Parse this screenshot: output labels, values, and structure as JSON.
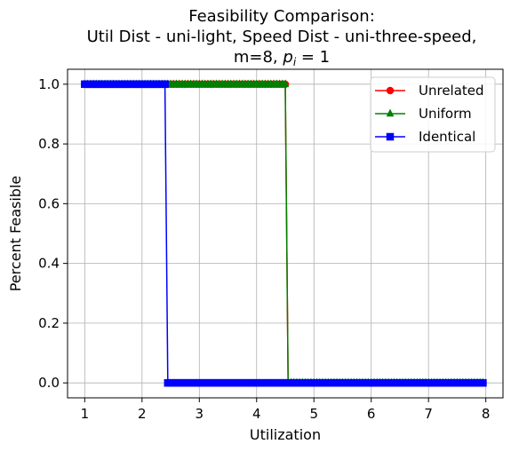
{
  "chart_data": {
    "type": "line",
    "title_lines": [
      "Feasibility Comparison:",
      "Util Dist - uni-light, Speed Dist - uni-three-speed,"
    ],
    "title_last_prefix": "m=8, ",
    "title_last_var": "p",
    "title_last_sub": "i",
    "title_last_suffix": " = 1",
    "xlabel": "Utilization",
    "ylabel": "Percent Feasible",
    "xlim": [
      0.7,
      8.3
    ],
    "ylim": [
      -0.05,
      1.05
    ],
    "xticks": [
      1,
      2,
      3,
      4,
      5,
      6,
      7,
      8
    ],
    "yticks": [
      0.0,
      0.2,
      0.4,
      0.6,
      0.8,
      1.0
    ],
    "grid": true,
    "legend_position": "top-right",
    "x_start": 1.0,
    "x_step": 0.05,
    "x_count": 140,
    "series": [
      {
        "name": "Unrelated",
        "color": "#ff0000",
        "marker": "circle",
        "feasible_until": 4.5
      },
      {
        "name": "Uniform",
        "color": "#008000",
        "marker": "triangle",
        "feasible_until": 4.5
      },
      {
        "name": "Identical",
        "color": "#0000ff",
        "marker": "square",
        "feasible_until": 2.4
      }
    ]
  }
}
